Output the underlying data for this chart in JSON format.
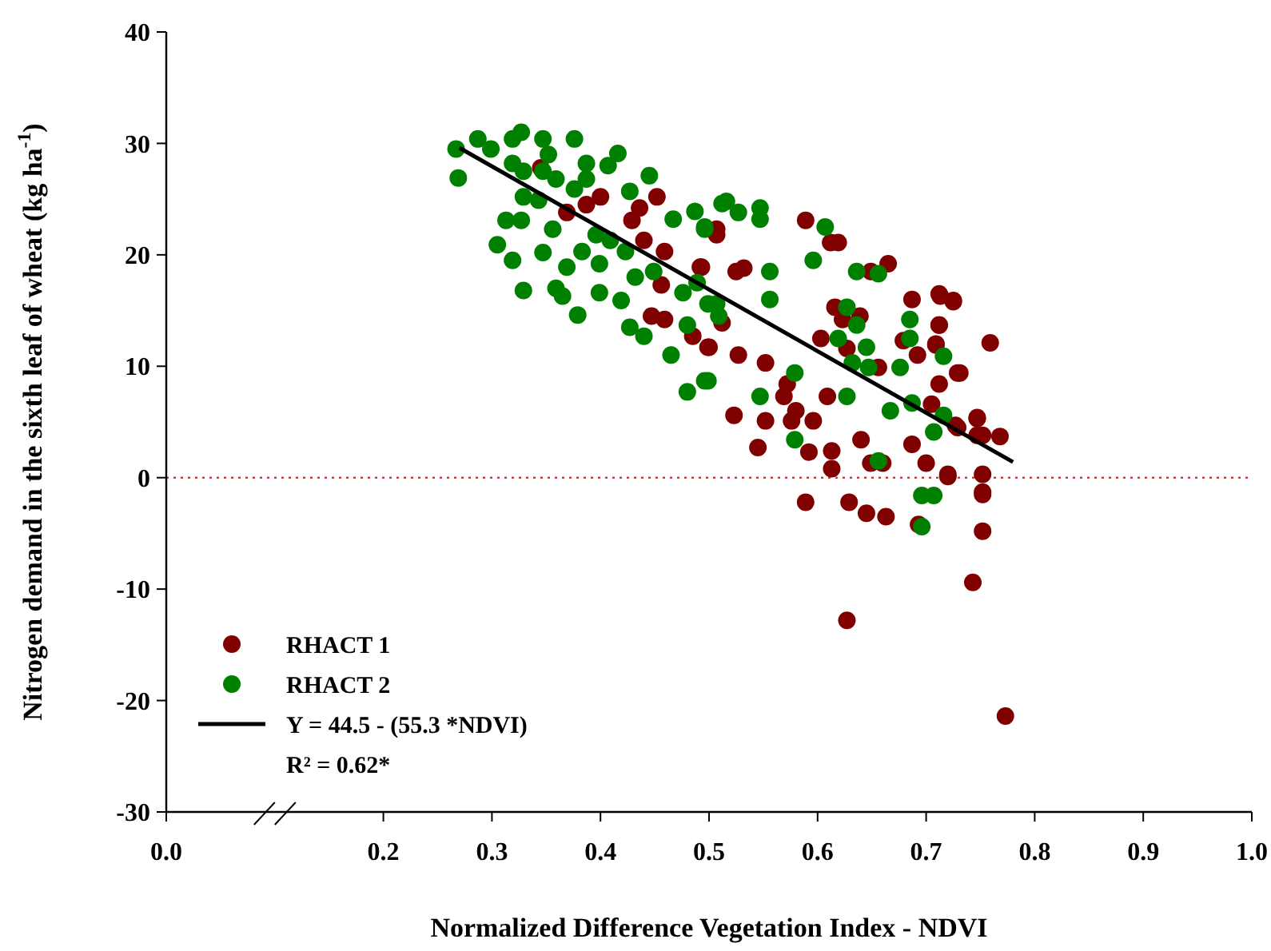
{
  "chart_data": {
    "type": "scatter",
    "xlabel": "Normalized Difference Vegetation Index - NDVI",
    "ylabel": "Nitrogen demand in the sixth leaf of wheat (kg ha$^{-1}$)",
    "xlim": [
      0,
      1
    ],
    "ylim": [
      -30,
      40
    ],
    "xticks": [
      {
        "value": 0,
        "label": "0.0"
      },
      {
        "value": 0.2,
        "label": "0.2"
      },
      {
        "value": 0.3,
        "label": "0.3"
      },
      {
        "value": 0.4,
        "label": "0.4"
      },
      {
        "value": 0.5,
        "label": "0.5"
      },
      {
        "value": 0.6,
        "label": "0.6"
      },
      {
        "value": 0.7,
        "label": "0.7"
      },
      {
        "value": 0.8,
        "label": "0.8"
      },
      {
        "value": 0.9,
        "label": "0.9"
      },
      {
        "value": 1,
        "label": "1.0"
      }
    ],
    "yticks": [
      -30,
      -20,
      -10,
      0,
      10,
      20,
      30,
      40
    ],
    "grid": false,
    "legend": "bottom left",
    "marker": "circle",
    "ref_lines": [
      {
        "axis": "y",
        "value": 0,
        "color": "#c04040",
        "line_style": "dotted"
      }
    ],
    "annotations": [
      "R² = 0.62*"
    ],
    "series": [
      {
        "name": "RHACT 1",
        "color": "#800000",
        "x": [
          0.4,
          0.387,
          0.369,
          0.452,
          0.436,
          0.429,
          0.44,
          0.459,
          0.492,
          0.507,
          0.456,
          0.447,
          0.459,
          0.485,
          0.5,
          0.345,
          0.589,
          0.612,
          0.619,
          0.665,
          0.649,
          0.687,
          0.713,
          0.725,
          0.712,
          0.709,
          0.729,
          0.692,
          0.679,
          0.616,
          0.623,
          0.639,
          0.603,
          0.627,
          0.656,
          0.609,
          0.572,
          0.569,
          0.58,
          0.596,
          0.576,
          0.552,
          0.527,
          0.523,
          0.552,
          0.545,
          0.592,
          0.613,
          0.613,
          0.64,
          0.649,
          0.66,
          0.687,
          0.7,
          0.72,
          0.747,
          0.747,
          0.729,
          0.589,
          0.629,
          0.645,
          0.663,
          0.693,
          0.752,
          0.499,
          0.512,
          0.525,
          0.532,
          0.507,
          0.493,
          0.712,
          0.725,
          0.712,
          0.709,
          0.759,
          0.731,
          0.712,
          0.705,
          0.727,
          0.747,
          0.752,
          0.768,
          0.72,
          0.752,
          0.752,
          0.752,
          0.743,
          0.773,
          0.627
        ],
        "values": [
          25.2,
          24.5,
          23.8,
          25.2,
          24.2,
          23.1,
          21.3,
          20.3,
          18.9,
          21.8,
          17.3,
          14.5,
          14.2,
          12.7,
          11.7,
          27.8,
          23.1,
          21.1,
          21.1,
          19.2,
          18.5,
          16,
          16.3,
          15.9,
          13.7,
          12,
          9.4,
          11,
          12.3,
          15.3,
          14.2,
          14.5,
          12.5,
          11.6,
          9.9,
          7.3,
          8.4,
          7.3,
          6,
          5.1,
          5.1,
          10.3,
          11,
          5.6,
          5.1,
          2.7,
          2.3,
          2.4,
          0.8,
          3.4,
          1.3,
          1.3,
          3,
          1.3,
          0.1,
          5.3,
          3.8,
          4.5,
          -2.2,
          -2.2,
          -3.2,
          -3.5,
          -4.2,
          -1.3,
          11.7,
          13.9,
          18.5,
          18.8,
          22.3,
          18.9,
          16.5,
          15.8,
          13.7,
          11.9,
          12.1,
          9.4,
          8.4,
          6.6,
          4.7,
          5.4,
          3.8,
          3.7,
          0.3,
          0.3,
          -1.5,
          -4.8,
          -9.4,
          -21.4,
          -12.8
        ]
      },
      {
        "name": "RHACT 2",
        "color": "#008000",
        "x": [
          0.267,
          0.269,
          0.287,
          0.299,
          0.319,
          0.327,
          0.347,
          0.352,
          0.376,
          0.319,
          0.329,
          0.347,
          0.359,
          0.387,
          0.407,
          0.416,
          0.387,
          0.376,
          0.329,
          0.343,
          0.313,
          0.327,
          0.305,
          0.319,
          0.329,
          0.356,
          0.347,
          0.369,
          0.359,
          0.365,
          0.379,
          0.383,
          0.399,
          0.399,
          0.419,
          0.427,
          0.44,
          0.465,
          0.48,
          0.496,
          0.427,
          0.445,
          0.396,
          0.409,
          0.423,
          0.432,
          0.449,
          0.467,
          0.487,
          0.496,
          0.476,
          0.489,
          0.499,
          0.509,
          0.48,
          0.512,
          0.516,
          0.527,
          0.547,
          0.547,
          0.556,
          0.556,
          0.607,
          0.596,
          0.636,
          0.656,
          0.627,
          0.636,
          0.619,
          0.645,
          0.632,
          0.647,
          0.685,
          0.685,
          0.676,
          0.716,
          0.716,
          0.687,
          0.667,
          0.707,
          0.579,
          0.547,
          0.627,
          0.579,
          0.656,
          0.696,
          0.707,
          0.499,
          0.496,
          0.507,
          0.696
        ],
        "values": [
          29.5,
          26.9,
          30.4,
          29.5,
          30.4,
          31,
          30.4,
          29,
          30.4,
          28.2,
          27.5,
          27.5,
          26.8,
          28.2,
          28,
          29.1,
          26.8,
          25.9,
          25.2,
          24.9,
          23.1,
          23.1,
          20.9,
          19.5,
          16.8,
          22.3,
          20.2,
          18.9,
          17,
          16.3,
          14.6,
          20.3,
          19.2,
          16.6,
          15.9,
          13.5,
          12.7,
          11,
          7.7,
          8.7,
          25.7,
          27.1,
          21.8,
          21.3,
          20.3,
          18,
          18.5,
          23.2,
          23.9,
          22.3,
          16.6,
          17.5,
          15.6,
          14.5,
          13.7,
          24.6,
          24.8,
          23.8,
          24.2,
          23.2,
          18.5,
          16,
          22.5,
          19.5,
          18.5,
          18.3,
          15.3,
          13.7,
          12.5,
          11.7,
          10.3,
          9.9,
          14.2,
          12.5,
          9.9,
          10.9,
          5.6,
          6.7,
          6,
          4.1,
          9.4,
          7.3,
          7.3,
          3.4,
          1.5,
          -1.6,
          -1.6,
          8.7,
          22.5,
          15.6,
          -4.4
        ]
      },
      {
        "name": "Y = 44.5 - (55.3 *NDVI)",
        "type": "line",
        "color": "#000000",
        "line_style": "solid",
        "marker": "none",
        "x": [
          0.27,
          0.78
        ],
        "values": [
          29.6,
          1.4
        ]
      }
    ]
  }
}
